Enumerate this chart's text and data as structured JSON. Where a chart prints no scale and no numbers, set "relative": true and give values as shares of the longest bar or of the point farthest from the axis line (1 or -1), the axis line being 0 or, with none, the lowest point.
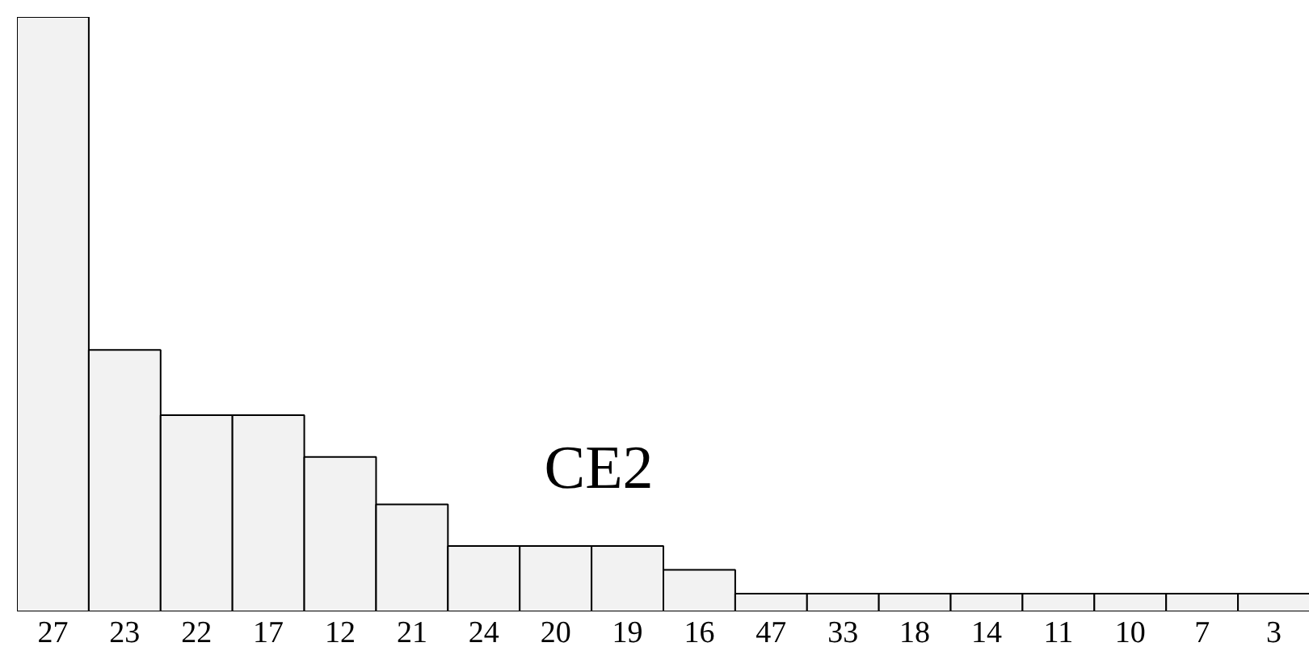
{
  "chart_data": {
    "type": "bar",
    "title": "CE2",
    "relative": true,
    "categories": [
      "27",
      "23",
      "22",
      "17",
      "12",
      "21",
      "24",
      "20",
      "19",
      "16",
      "47",
      "33",
      "18",
      "14",
      "11",
      "10",
      "7",
      "3"
    ],
    "values": [
      1,
      0.44,
      0.33,
      0.33,
      0.26,
      0.18,
      0.11,
      0.11,
      0.11,
      0.07,
      0.03,
      0.03,
      0.03,
      0.03,
      0.03,
      0.03,
      0.03,
      0.03
    ],
    "color": "#f2f2f2",
    "grid": false
  }
}
